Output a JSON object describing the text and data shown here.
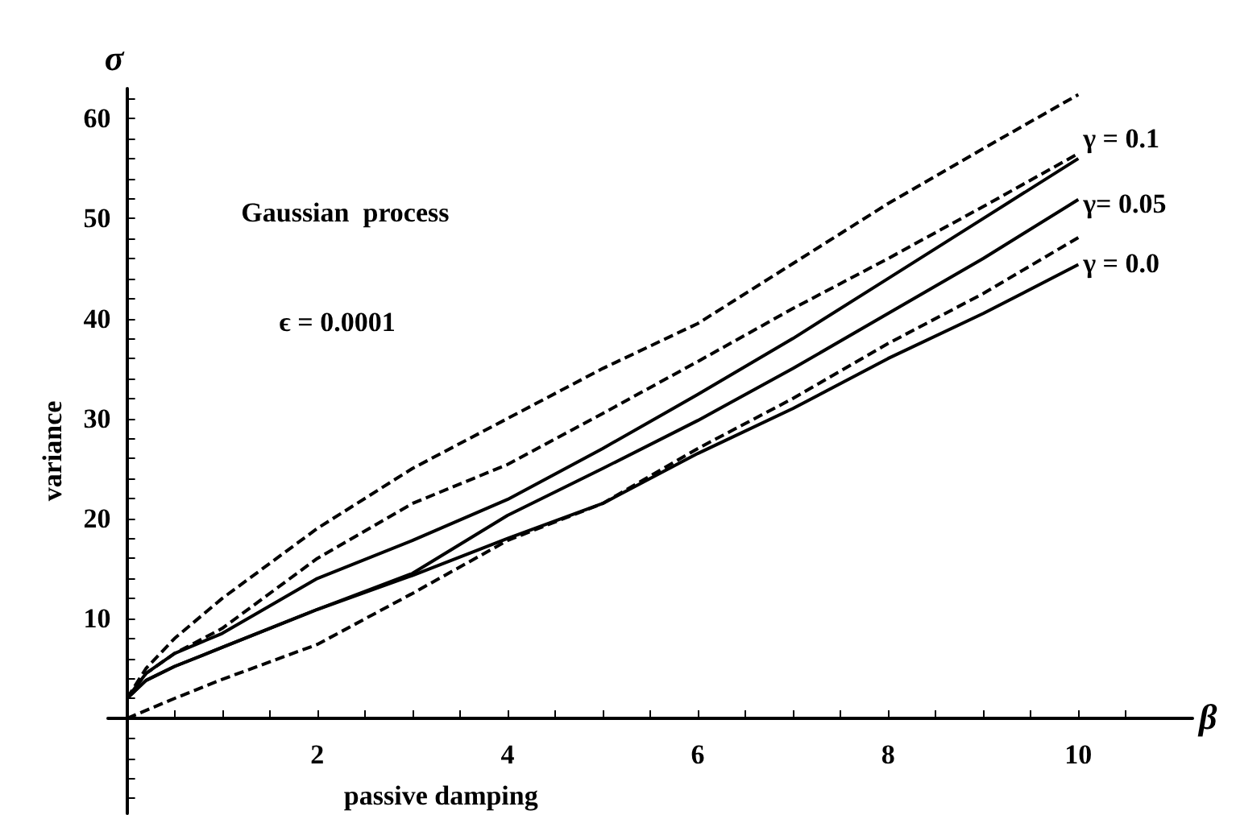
{
  "chart_data": {
    "type": "line",
    "xlabel": "passive damping",
    "ylabel": "variance",
    "annotations": [
      "σ",
      "β",
      "Gaussian  process",
      "ϵ = 0.0001",
      "γ = 0.1",
      "γ= 0.05",
      "γ = 0.0"
    ],
    "xlim": [
      -0.2,
      11.2
    ],
    "ylim": [
      -9.5,
      63
    ],
    "xticks": [
      {
        "value": 0.5,
        "label": null
      },
      {
        "value": 1,
        "label": null
      },
      {
        "value": 1.5,
        "label": null
      },
      2,
      {
        "value": 2.5,
        "label": null
      },
      {
        "value": 3,
        "label": null
      },
      {
        "value": 3.5,
        "label": null
      },
      4,
      {
        "value": 4.5,
        "label": null
      },
      {
        "value": 5,
        "label": null
      },
      {
        "value": 5.5,
        "label": null
      },
      6,
      {
        "value": 6.5,
        "label": null
      },
      {
        "value": 7,
        "label": null
      },
      {
        "value": 7.5,
        "label": null
      },
      8,
      {
        "value": 8.5,
        "label": null
      },
      {
        "value": 9,
        "label": null
      },
      {
        "value": 9.5,
        "label": null
      },
      10,
      {
        "value": 10.5,
        "label": null
      }
    ],
    "yticks": [
      {
        "value": -8,
        "label": null
      },
      {
        "value": -6,
        "label": null
      },
      {
        "value": -4,
        "label": null
      },
      {
        "value": -2,
        "label": null
      },
      {
        "value": 2,
        "label": null
      },
      {
        "value": 4,
        "label": null
      },
      {
        "value": 6,
        "label": null
      },
      {
        "value": 8,
        "label": null
      },
      10,
      {
        "value": 12,
        "label": null
      },
      {
        "value": 14,
        "label": null
      },
      {
        "value": 16,
        "label": null
      },
      {
        "value": 18,
        "label": null
      },
      20,
      {
        "value": 22,
        "label": null
      },
      {
        "value": 24,
        "label": null
      },
      {
        "value": 26,
        "label": null
      },
      {
        "value": 28,
        "label": null
      },
      30,
      {
        "value": 32,
        "label": null
      },
      {
        "value": 34,
        "label": null
      },
      {
        "value": 36,
        "label": null
      },
      {
        "value": 38,
        "label": null
      },
      40,
      {
        "value": 42,
        "label": null
      },
      {
        "value": 44,
        "label": null
      },
      {
        "value": 46,
        "label": null
      },
      {
        "value": 48,
        "label": null
      },
      50,
      {
        "value": 52,
        "label": null
      },
      {
        "value": 54,
        "label": null
      },
      {
        "value": 56,
        "label": null
      },
      {
        "value": 58,
        "label": null
      },
      60,
      {
        "value": 62,
        "label": null
      }
    ],
    "marker": "none",
    "series": [
      {
        "color": "#000000",
        "line_style": "dashed",
        "x": [
          0,
          0.2,
          0.5,
          1,
          2,
          3,
          4,
          5,
          6,
          7,
          8,
          9,
          10
        ],
        "values": [
          2,
          5,
          8,
          12,
          19,
          25,
          30,
          35,
          39.5,
          45.5,
          51.5,
          57,
          62.4
        ]
      },
      {
        "color": "#000000",
        "line_style": "dashed",
        "x": [
          0,
          0.2,
          0.5,
          1,
          2,
          3,
          4,
          5,
          6,
          7,
          8,
          9,
          10
        ],
        "values": [
          2,
          4.5,
          6.5,
          9,
          16,
          21.5,
          25.4,
          30.5,
          35.7,
          41,
          46,
          51.2,
          56.5
        ]
      },
      {
        "color": "#000000",
        "line_style": "solid",
        "x": [
          0,
          0.2,
          0.5,
          1,
          2,
          3,
          4,
          5,
          6,
          7,
          8,
          9,
          10
        ],
        "values": [
          2,
          4.5,
          6.5,
          8.5,
          14,
          17.8,
          21.9,
          27,
          32.4,
          38,
          44,
          50,
          56
        ]
      },
      {
        "color": "#000000",
        "line_style": "solid",
        "x": [
          0,
          0.2,
          0.5,
          1,
          2,
          3,
          4,
          5,
          6,
          7,
          8,
          9,
          10
        ],
        "values": [
          2,
          3.8,
          5.2,
          7.1,
          10.9,
          14.5,
          20.3,
          25,
          29.8,
          35,
          40.5,
          46,
          51.9
        ]
      },
      {
        "color": "#000000",
        "line_style": "solid",
        "x": [
          0,
          0.2,
          0.5,
          1,
          2,
          3,
          4,
          5,
          6,
          7,
          8,
          9,
          10
        ],
        "values": [
          2,
          3.8,
          5.2,
          7.1,
          10.9,
          14.3,
          18,
          21.5,
          26.5,
          31,
          36,
          40.5,
          45.4
        ]
      },
      {
        "color": "#000000",
        "line_style": "dashed",
        "x": [
          0,
          0.5,
          1,
          2,
          3,
          4,
          5,
          6,
          7,
          8,
          9,
          10
        ],
        "values": [
          0,
          2,
          3.9,
          7.4,
          12.5,
          17.8,
          21.5,
          27,
          32,
          37.5,
          42.5,
          48.1
        ]
      }
    ]
  }
}
